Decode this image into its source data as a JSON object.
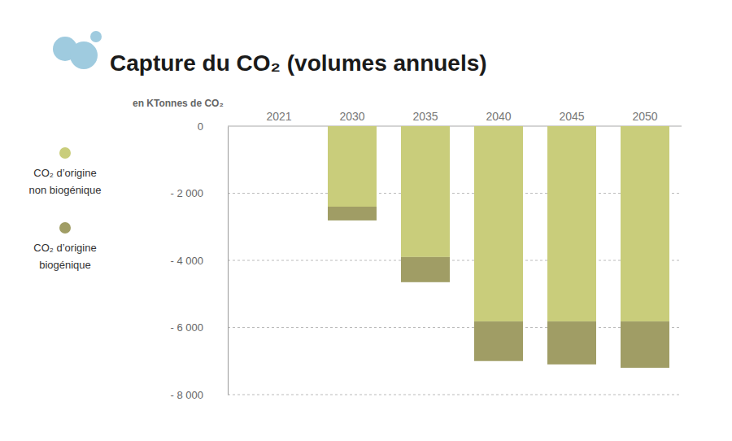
{
  "chart_data": {
    "type": "bar",
    "title": "Capture du CO₂ (volumes annuels)",
    "y_label": "en KTonnes de CO₂",
    "categories": [
      "2021",
      "2030",
      "2035",
      "2040",
      "2045",
      "2050"
    ],
    "series": [
      {
        "name": "CO₂ d’origine non biogénique",
        "color": "#c9cd7b",
        "values": [
          0,
          -2400,
          -3900,
          -5820,
          -5820,
          -5820
        ]
      },
      {
        "name": "CO₂ d’origine biogénique",
        "color": "#a09d65",
        "values": [
          0,
          -410,
          -750,
          -1180,
          -1280,
          -1380
        ]
      }
    ],
    "stacked": true,
    "ylim": [
      -8000,
      0
    ],
    "yticks": [
      0,
      {
        "value": -2000,
        "label": "- 2 000"
      },
      {
        "value": -4000,
        "label": "- 4 000"
      },
      {
        "value": -6000,
        "label": "- 6 000"
      },
      {
        "value": -8000,
        "label": "- 8 000"
      }
    ],
    "grid": true,
    "legend": "left"
  }
}
